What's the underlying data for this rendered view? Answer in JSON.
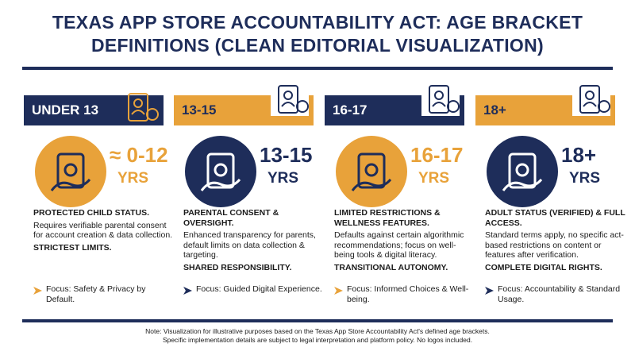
{
  "header": {
    "title": "TEXAS APP STORE ACCOUNTABILITY ACT: AGE BRACKET DEFINITIONS (CLEAN EDITORIAL VISUALIZATION)"
  },
  "columns": [
    {
      "label": "UNDER 13",
      "range": "≈ 0-12",
      "unit": "YRS",
      "heading": "PROTECTED CHILD STATUS.",
      "body": "Requires verifiable parental consent for account creation & data collection.",
      "emphasis": "STRICTEST LIMITS.",
      "focus": "Focus: Safety & Privacy by Default."
    },
    {
      "label": "13-15",
      "range": "13-15",
      "unit": "YRS",
      "heading": "PARENTAL CONSENT & OVERSIGHT.",
      "body": "Enhanced transparency for parents, default limits on data collection & targeting.",
      "emphasis": "SHARED RESPONSIBILITY.",
      "focus": "Focus: Guided Digital Experience."
    },
    {
      "label": "16-17",
      "range": "16-17",
      "unit": "YRS",
      "heading": "LIMITED RESTRICTIONS & WELLNESS FEATURES.",
      "body": "Defaults against certain algorithmic recommendations; focus on well-being tools & digital literacy.",
      "emphasis": "TRANSITIONAL AUTONOMY.",
      "focus": "Focus: Informed Choices & Well-being."
    },
    {
      "label": "18+",
      "range": "18+",
      "unit": "YRS",
      "heading": "ADULT STATUS (VERIFIED) & FULL ACCESS.",
      "body": "Standard terms apply, no specific act-based restrictions on content or features after verification.",
      "emphasis": "COMPLETE DIGITAL RIGHTS.",
      "focus": "Focus: Accountability & Standard Usage."
    }
  ],
  "footnote": [
    "Note: Visualization for illustrative purposes based on the Texas App Store Accountability Act's defined age brackets.",
    "Specific implementation details are subject to legal interpretation and platform policy. No logos included."
  ]
}
